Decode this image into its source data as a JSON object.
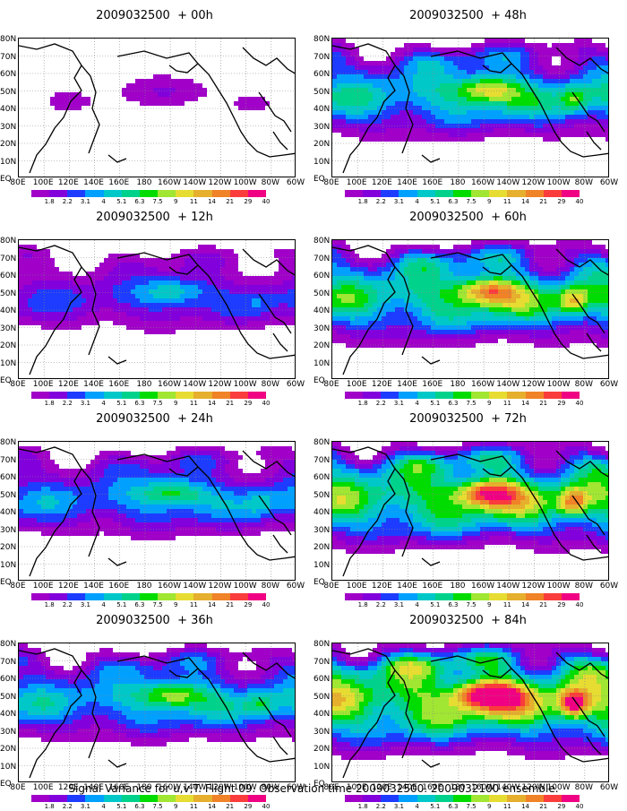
{
  "caption": "Signal Variance for u,v,T. Flight 09. Observation time 2009032500. 2009032100 ensemble.",
  "panels": [
    {
      "title": "2009032500  + 00h",
      "forecast_hour": 0,
      "intensity": 0.5
    },
    {
      "title": "2009032500  + 48h",
      "forecast_hour": 48,
      "intensity": 2.2
    },
    {
      "title": "2009032500  + 12h",
      "forecast_hour": 12,
      "intensity": 1.3
    },
    {
      "title": "2009032500  + 60h",
      "forecast_hour": 60,
      "intensity": 2.6
    },
    {
      "title": "2009032500  + 24h",
      "forecast_hour": 24,
      "intensity": 1.7
    },
    {
      "title": "2009032500  + 72h",
      "forecast_hour": 72,
      "intensity": 2.9
    },
    {
      "title": "2009032500  + 36h",
      "forecast_hour": 36,
      "intensity": 2.0
    },
    {
      "title": "2009032500  + 84h",
      "forecast_hour": 84,
      "intensity": 3.3
    }
  ],
  "lat_labels": [
    "80N",
    "70N",
    "60N",
    "50N",
    "40N",
    "30N",
    "20N",
    "10N",
    "EQ"
  ],
  "lon_labels": [
    "80E",
    "100E",
    "120E",
    "140E",
    "160E",
    "180",
    "160W",
    "140W",
    "120W",
    "100W",
    "80W",
    "60W"
  ],
  "colorbar": {
    "labels": [
      "1.8",
      "2.2",
      "3.1",
      "4",
      "5.1",
      "6.3",
      "7.5",
      "9",
      "11",
      "14",
      "21",
      "29",
      "40"
    ],
    "colors": [
      "#a000c8",
      "#8200dc",
      "#1e3cff",
      "#00a0ff",
      "#00c8c8",
      "#00d28c",
      "#00dc00",
      "#a0e632",
      "#e6dc32",
      "#e6af2d",
      "#f08228",
      "#fa3c3c",
      "#f00082"
    ]
  }
}
